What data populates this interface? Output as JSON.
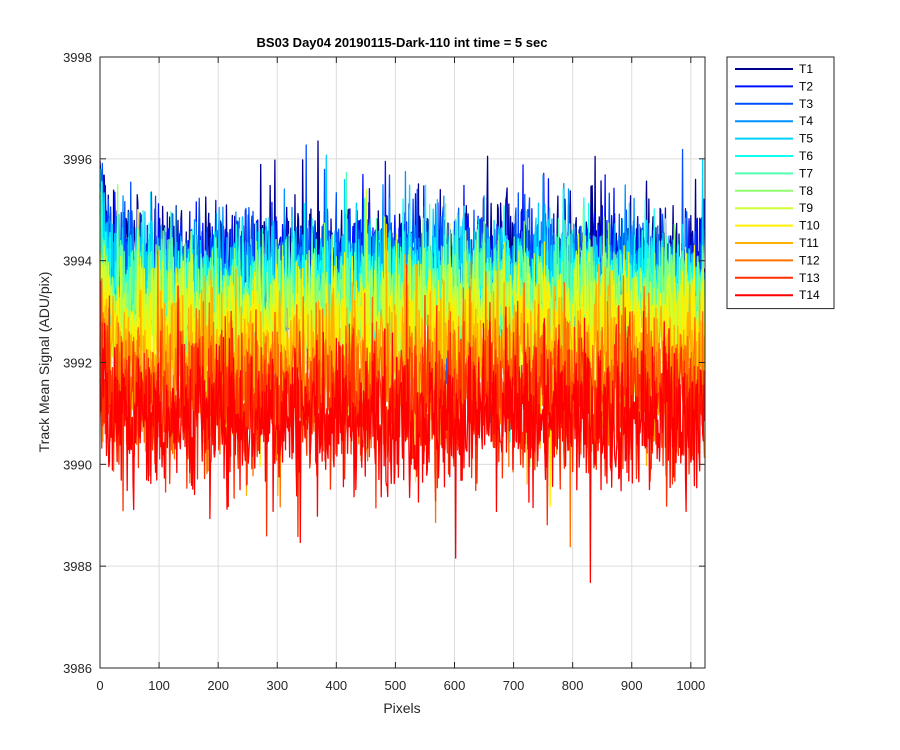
{
  "chart_data": {
    "type": "line",
    "title": "BS03 Day04 20190115-Dark-110 int time = 5 sec",
    "xlabel": "Pixels",
    "ylabel": "Track Mean Signal (ADU/pix)",
    "xlim": [
      0,
      1024
    ],
    "ylim": [
      3986,
      3998
    ],
    "xticks": [
      0,
      100,
      200,
      300,
      400,
      500,
      600,
      700,
      800,
      900,
      1000
    ],
    "yticks": [
      3986,
      3988,
      3990,
      3992,
      3994,
      3996,
      3998
    ],
    "grid": true,
    "legend_position": "outside-right",
    "series": [
      {
        "name": "T1",
        "color": "#00008f",
        "level": 3994.0,
        "spread": 0.8
      },
      {
        "name": "T2",
        "color": "#0010ff",
        "level": 3993.9,
        "spread": 0.8
      },
      {
        "name": "T3",
        "color": "#0050ff",
        "level": 3993.8,
        "spread": 0.8
      },
      {
        "name": "T4",
        "color": "#0090ff",
        "level": 3993.7,
        "spread": 0.8
      },
      {
        "name": "T5",
        "color": "#00cfff",
        "level": 3993.6,
        "spread": 0.8
      },
      {
        "name": "T6",
        "color": "#10ffef",
        "level": 3993.4,
        "spread": 0.85
      },
      {
        "name": "T7",
        "color": "#50ffaf",
        "level": 3993.2,
        "spread": 0.85
      },
      {
        "name": "T8",
        "color": "#90ff70",
        "level": 3993.0,
        "spread": 0.9
      },
      {
        "name": "T9",
        "color": "#cfff30",
        "level": 3992.8,
        "spread": 0.9
      },
      {
        "name": "T10",
        "color": "#ffef00",
        "level": 3992.4,
        "spread": 1.0
      },
      {
        "name": "T11",
        "color": "#ffb000",
        "level": 3992.0,
        "spread": 1.0
      },
      {
        "name": "T12",
        "color": "#ff7000",
        "level": 3991.6,
        "spread": 1.0
      },
      {
        "name": "T13",
        "color": "#ff3000",
        "level": 3991.2,
        "spread": 1.0
      },
      {
        "name": "T14",
        "color": "#ff0000",
        "level": 3990.9,
        "spread": 1.0
      }
    ]
  }
}
